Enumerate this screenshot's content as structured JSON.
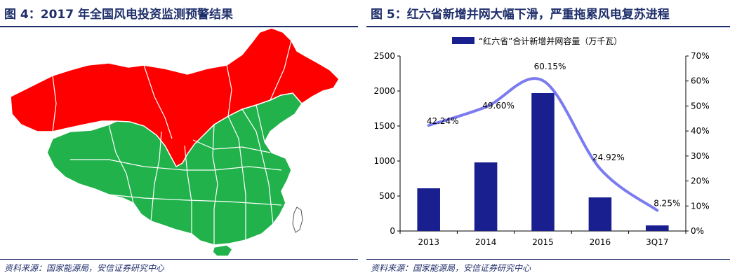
{
  "left_panel": {
    "title": "图 4：2017 年全国风电投资监测预警结果",
    "source": "资料来源：国家能源局，安信证券研究中心",
    "map_colors": {
      "warning": "#ff0000",
      "normal": "#21b24b",
      "border": "#ffffff"
    },
    "legend_semantics": {
      "warning": "red-zone",
      "normal": "green-zone"
    }
  },
  "right_panel": {
    "title": "图 5：红六省新增并网大幅下滑，严重拖累风电复苏进程",
    "source": "资料来源：国家能源局，安信证券研究中心"
  },
  "chart_data": {
    "type": "bar",
    "categories": [
      "2013",
      "2014",
      "2015",
      "2016",
      "3Q17"
    ],
    "series": [
      {
        "name": "“红六省”合计新增并网容量（万千瓦）",
        "type": "bar",
        "axis": "left",
        "values": [
          610,
          980,
          1970,
          480,
          80
        ],
        "color": "#1a1f8f"
      },
      {
        "type": "line",
        "axis": "right",
        "smooth": true,
        "values": [
          42.24,
          49.6,
          60.15,
          24.92,
          8.25
        ],
        "labels": [
          "42.24%",
          "49.60%",
          "60.15%",
          "24.92%",
          "8.25%"
        ],
        "color": "#7b7bf0"
      }
    ],
    "y_left": {
      "min": 0,
      "max": 2500,
      "ticks": [
        "0",
        "500",
        "1000",
        "1500",
        "2000",
        "2500"
      ]
    },
    "y_right": {
      "min": 0,
      "max": 70,
      "ticks": [
        "0%",
        "10%",
        "20%",
        "30%",
        "40%",
        "50%",
        "60%",
        "70%"
      ]
    },
    "legend_position": "top-center",
    "grid": false
  }
}
